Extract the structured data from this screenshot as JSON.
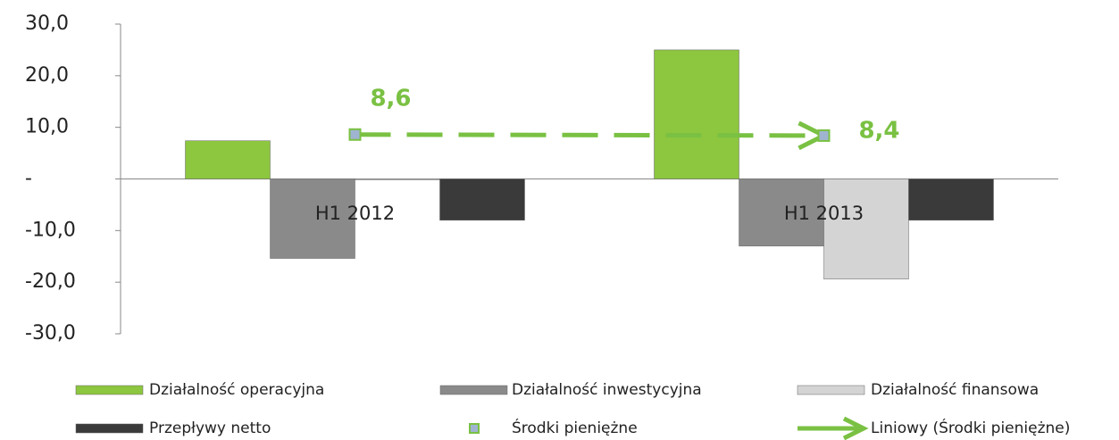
{
  "chart_data": {
    "type": "bar",
    "categories": [
      "H1 2012",
      "H1 2013"
    ],
    "series": [
      {
        "name": "Działalność operacyjna",
        "color": "#8dc63f",
        "values": [
          7.4,
          25.0
        ]
      },
      {
        "name": "Działalność inwestycyjna",
        "color": "#8a8a8a",
        "values": [
          -15.4,
          -13.0
        ]
      },
      {
        "name": "Działalność finansowa",
        "color": "#d4d4d4",
        "values": [
          0,
          -19.4
        ]
      },
      {
        "name": "Przepływy netto",
        "color": "#3a3a3a",
        "values": [
          -8.0,
          -8.0
        ]
      },
      {
        "name": "Środki pieniężne",
        "type": "marker",
        "color": "#9fb4d0",
        "values": [
          8.6,
          8.4
        ],
        "value_labels": [
          "8,6",
          "8,4"
        ]
      },
      {
        "name": "Liniowy (Środki pieniężne)",
        "type": "trendline",
        "color": "#7ac143",
        "values": [
          8.6,
          8.4
        ]
      }
    ],
    "ylim": [
      -30,
      30
    ],
    "yticks": [
      {
        "value": -30,
        "label": "-30,0"
      },
      {
        "value": -20,
        "label": "-20,0"
      },
      {
        "value": -10,
        "label": "-10,0"
      },
      {
        "value": 0,
        "label": "-"
      },
      {
        "value": 10,
        "label": "10,0"
      },
      {
        "value": 20,
        "label": "20,0"
      },
      {
        "value": 30,
        "label": "30,0"
      }
    ],
    "legend": "bottom"
  }
}
